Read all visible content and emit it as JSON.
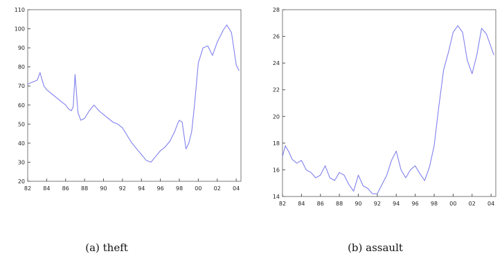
{
  "chart_data": [
    {
      "type": "line",
      "caption": "(a)  theft",
      "ylim": [
        20,
        110
      ],
      "yticks": [
        20,
        30,
        40,
        50,
        60,
        70,
        80,
        90,
        100,
        110
      ],
      "xlim": [
        1982,
        2004.5
      ],
      "xticks": [
        {
          "value": 1982,
          "label": "82"
        },
        {
          "value": 1984,
          "label": "84"
        },
        {
          "value": 1986,
          "label": "86"
        },
        {
          "value": 1988,
          "label": "88"
        },
        {
          "value": 1990,
          "label": "90"
        },
        {
          "value": 1992,
          "label": "92"
        },
        {
          "value": 1994,
          "label": "94"
        },
        {
          "value": 1996,
          "label": "96"
        },
        {
          "value": 1998,
          "label": "98"
        },
        {
          "value": 2000,
          "label": "00"
        },
        {
          "value": 2002,
          "label": "02"
        },
        {
          "value": 2004,
          "label": "04"
        }
      ],
      "series": [
        {
          "color": "#8080ee",
          "x": [
            1982,
            1982.5,
            1983,
            1983.3,
            1983.7,
            1984,
            1984.5,
            1985,
            1985.5,
            1986,
            1986.3,
            1986.6,
            1986.8,
            1987.0,
            1987.3,
            1987.6,
            1988,
            1988.5,
            1989,
            1989.5,
            1990,
            1990.5,
            1991,
            1991.5,
            1992,
            1992.5,
            1993,
            1993.5,
            1994,
            1994.5,
            1995,
            1995.5,
            1996,
            1996.5,
            1997,
            1997.5,
            1997.8,
            1998.0,
            1998.3,
            1998.7,
            1999,
            1999.3,
            1999.6,
            2000,
            2000.5,
            2001,
            2001.5,
            2002,
            2002.3,
            2002.6,
            2003.0,
            2003.5,
            2004,
            2004.3
          ],
          "y": [
            71,
            72,
            73,
            77,
            70,
            68,
            66,
            64,
            62,
            60,
            58,
            57,
            59,
            76,
            56,
            52,
            53,
            57,
            60,
            57,
            55,
            53,
            51,
            50,
            48,
            44,
            40,
            37,
            34,
            31,
            30,
            33,
            36,
            38,
            41,
            46,
            50,
            52,
            51,
            37,
            40,
            46,
            60,
            82,
            90,
            91,
            86,
            93,
            96,
            99,
            102,
            98,
            81,
            78
          ]
        }
      ]
    },
    {
      "type": "line",
      "caption": "(b)  assault",
      "ylim": [
        14,
        28
      ],
      "yticks": [
        14,
        16,
        18,
        20,
        22,
        24,
        26,
        28
      ],
      "xlim": [
        1982,
        2004.5
      ],
      "xticks": [
        {
          "value": 1982,
          "label": "82"
        },
        {
          "value": 1984,
          "label": "84"
        },
        {
          "value": 1986,
          "label": "86"
        },
        {
          "value": 1988,
          "label": "88"
        },
        {
          "value": 1990,
          "label": "90"
        },
        {
          "value": 1992,
          "label": "92"
        },
        {
          "value": 1994,
          "label": "94"
        },
        {
          "value": 1996,
          "label": "96"
        },
        {
          "value": 1998,
          "label": "98"
        },
        {
          "value": 2000,
          "label": "00"
        },
        {
          "value": 2002,
          "label": "02"
        },
        {
          "value": 2004,
          "label": "04"
        }
      ],
      "series": [
        {
          "color": "#8080ee",
          "x": [
            1982,
            1982.3,
            1982.7,
            1983,
            1983.5,
            1984,
            1984.5,
            1985,
            1985.5,
            1986,
            1986.5,
            1987,
            1987.5,
            1988,
            1988.5,
            1989,
            1989.5,
            1990,
            1990.5,
            1991,
            1991.5,
            1992,
            1992.5,
            1993,
            1993.5,
            1994,
            1994.5,
            1995,
            1995.5,
            1996,
            1996.5,
            1997,
            1997.5,
            1998,
            1998.5,
            1999,
            1999.5,
            2000,
            2000.5,
            2001,
            2001.5,
            2002,
            2002.5,
            2003,
            2003.5,
            2004,
            2004.3
          ],
          "y": [
            17,
            17.8,
            17.3,
            16.8,
            16.5,
            16.7,
            16.0,
            15.8,
            15.4,
            15.6,
            16.3,
            15.4,
            15.2,
            15.8,
            15.6,
            14.9,
            14.4,
            15.6,
            14.8,
            14.6,
            14.2,
            14.2,
            14.9,
            15.6,
            16.7,
            17.4,
            16.0,
            15.4,
            16.0,
            16.3,
            15.7,
            15.2,
            16.2,
            17.8,
            20.8,
            23.5,
            24.8,
            26.3,
            26.8,
            26.3,
            24.2,
            23.2,
            24.6,
            26.6,
            26.2,
            25.2,
            24.6
          ]
        }
      ]
    }
  ]
}
